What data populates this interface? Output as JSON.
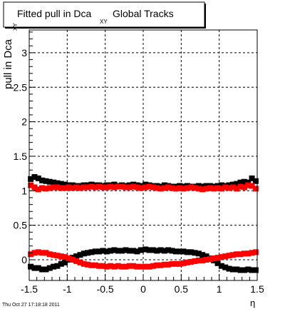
{
  "chart_data": {
    "type": "scatter",
    "title": {
      "before_sub": "Fitted pull in Dca",
      "subscript": "XY",
      "after_sub": "Global Tracks"
    },
    "ylabel": {
      "main": "pull in Dca",
      "subscript": "XY"
    },
    "xlabel": "η",
    "xlim": [
      -1.5,
      1.5
    ],
    "ylim": [
      -0.3,
      3.33
    ],
    "x_ticks": [
      "-1.5",
      "-1",
      "-0.5",
      "0",
      "0.5",
      "1",
      "1.5"
    ],
    "y_ticks": [
      "0",
      "0.5",
      "1",
      "1.5",
      "2",
      "2.5",
      "3"
    ],
    "grid": true,
    "marker": "square",
    "series": [
      {
        "color": "#000000",
        "x": [
          -1.48,
          -1.43,
          -1.38,
          -1.33,
          -1.28,
          -1.23,
          -1.18,
          -1.13,
          -1.08,
          -1.03,
          -0.98,
          -0.93,
          -0.88,
          -0.83,
          -0.78,
          -0.73,
          -0.68,
          -0.63,
          -0.58,
          -0.53,
          -0.48,
          -0.43,
          -0.38,
          -0.33,
          -0.28,
          -0.23,
          -0.18,
          -0.13,
          -0.08,
          -0.03,
          0.03,
          0.08,
          0.13,
          0.18,
          0.23,
          0.28,
          0.33,
          0.38,
          0.43,
          0.48,
          0.53,
          0.58,
          0.63,
          0.68,
          0.73,
          0.78,
          0.83,
          0.88,
          0.93,
          0.98,
          1.03,
          1.08,
          1.13,
          1.18,
          1.23,
          1.28,
          1.33,
          1.38,
          1.43,
          1.48
        ],
        "y": [
          1.17,
          1.2,
          1.18,
          1.15,
          1.14,
          1.13,
          1.12,
          1.11,
          1.1,
          1.09,
          1.08,
          1.08,
          1.07,
          1.07,
          1.08,
          1.08,
          1.09,
          1.08,
          1.08,
          1.07,
          1.08,
          1.08,
          1.09,
          1.07,
          1.08,
          1.07,
          1.08,
          1.09,
          1.08,
          1.07,
          1.09,
          1.08,
          1.07,
          1.07,
          1.06,
          1.08,
          1.07,
          1.06,
          1.06,
          1.07,
          1.06,
          1.07,
          1.06,
          1.06,
          1.07,
          1.06,
          1.07,
          1.07,
          1.06,
          1.07,
          1.08,
          1.07,
          1.08,
          1.09,
          1.1,
          1.12,
          1.13,
          1.12,
          1.18,
          1.14
        ]
      },
      {
        "color": "#ff0000",
        "x": [
          -1.48,
          -1.43,
          -1.38,
          -1.33,
          -1.28,
          -1.23,
          -1.18,
          -1.13,
          -1.08,
          -1.03,
          -0.98,
          -0.93,
          -0.88,
          -0.83,
          -0.78,
          -0.73,
          -0.68,
          -0.63,
          -0.58,
          -0.53,
          -0.48,
          -0.43,
          -0.38,
          -0.33,
          -0.28,
          -0.23,
          -0.18,
          -0.13,
          -0.08,
          -0.03,
          0.03,
          0.08,
          0.13,
          0.18,
          0.23,
          0.28,
          0.33,
          0.38,
          0.43,
          0.48,
          0.53,
          0.58,
          0.63,
          0.68,
          0.73,
          0.78,
          0.83,
          0.88,
          0.93,
          0.98,
          1.03,
          1.08,
          1.13,
          1.18,
          1.23,
          1.28,
          1.33,
          1.38,
          1.43,
          1.48
        ],
        "y": [
          1.08,
          1.05,
          1.02,
          1.04,
          1.03,
          1.04,
          1.05,
          1.05,
          1.04,
          1.04,
          1.05,
          1.04,
          1.05,
          1.04,
          1.05,
          1.05,
          1.06,
          1.05,
          1.06,
          1.05,
          1.05,
          1.06,
          1.05,
          1.06,
          1.06,
          1.05,
          1.05,
          1.06,
          1.05,
          1.04,
          1.05,
          1.06,
          1.05,
          1.04,
          1.03,
          1.04,
          1.05,
          1.04,
          1.03,
          1.04,
          1.03,
          1.04,
          1.05,
          1.04,
          1.03,
          1.02,
          1.03,
          1.04,
          1.03,
          1.04,
          1.03,
          1.05,
          1.04,
          1.05,
          1.03,
          1.06,
          1.05,
          1.08,
          1.07,
          1.03
        ]
      },
      {
        "color": "#000000",
        "x": [
          -1.48,
          -1.43,
          -1.38,
          -1.33,
          -1.28,
          -1.23,
          -1.18,
          -1.13,
          -1.08,
          -1.03,
          -0.98,
          -0.93,
          -0.88,
          -0.83,
          -0.78,
          -0.73,
          -0.68,
          -0.63,
          -0.58,
          -0.53,
          -0.48,
          -0.43,
          -0.38,
          -0.33,
          -0.28,
          -0.23,
          -0.18,
          -0.13,
          -0.08,
          -0.03,
          0.03,
          0.08,
          0.13,
          0.18,
          0.23,
          0.28,
          0.33,
          0.38,
          0.43,
          0.48,
          0.53,
          0.58,
          0.63,
          0.68,
          0.73,
          0.78,
          0.83,
          0.88,
          0.93,
          0.98,
          1.03,
          1.08,
          1.13,
          1.18,
          1.23,
          1.28,
          1.33,
          1.38,
          1.43,
          1.48
        ],
        "y": [
          -0.1,
          -0.12,
          -0.12,
          -0.14,
          -0.14,
          -0.12,
          -0.1,
          -0.09,
          -0.06,
          -0.04,
          0.0,
          0.03,
          0.05,
          0.07,
          0.09,
          0.1,
          0.11,
          0.12,
          0.12,
          0.13,
          0.12,
          0.13,
          0.14,
          0.13,
          0.13,
          0.14,
          0.13,
          0.13,
          0.12,
          0.14,
          0.15,
          0.14,
          0.14,
          0.13,
          0.14,
          0.13,
          0.14,
          0.13,
          0.12,
          0.12,
          0.12,
          0.11,
          0.11,
          0.1,
          0.09,
          0.07,
          0.05,
          0.02,
          -0.01,
          -0.05,
          -0.09,
          -0.11,
          -0.13,
          -0.14,
          -0.14,
          -0.15,
          -0.15,
          -0.14,
          -0.15,
          -0.15
        ]
      },
      {
        "color": "#ff0000",
        "x": [
          -1.48,
          -1.43,
          -1.38,
          -1.33,
          -1.28,
          -1.23,
          -1.18,
          -1.13,
          -1.08,
          -1.03,
          -0.98,
          -0.93,
          -0.88,
          -0.83,
          -0.78,
          -0.73,
          -0.68,
          -0.63,
          -0.58,
          -0.53,
          -0.48,
          -0.43,
          -0.38,
          -0.33,
          -0.28,
          -0.23,
          -0.18,
          -0.13,
          -0.08,
          -0.03,
          0.03,
          0.08,
          0.13,
          0.18,
          0.23,
          0.28,
          0.33,
          0.38,
          0.43,
          0.48,
          0.53,
          0.58,
          0.63,
          0.68,
          0.73,
          0.78,
          0.83,
          0.88,
          0.93,
          0.98,
          1.03,
          1.08,
          1.13,
          1.18,
          1.23,
          1.28,
          1.33,
          1.38,
          1.43,
          1.48
        ],
        "y": [
          0.08,
          0.1,
          0.11,
          0.1,
          0.1,
          0.08,
          0.07,
          0.06,
          0.05,
          0.04,
          0.02,
          0.0,
          -0.02,
          -0.04,
          -0.06,
          -0.07,
          -0.08,
          -0.08,
          -0.09,
          -0.09,
          -0.1,
          -0.09,
          -0.1,
          -0.09,
          -0.1,
          -0.1,
          -0.09,
          -0.09,
          -0.1,
          -0.1,
          -0.1,
          -0.1,
          -0.09,
          -0.08,
          -0.08,
          -0.07,
          -0.07,
          -0.06,
          -0.06,
          -0.06,
          -0.05,
          -0.04,
          -0.03,
          -0.02,
          -0.01,
          -0.01,
          0.0,
          0.01,
          0.02,
          0.03,
          0.04,
          0.05,
          0.06,
          0.07,
          0.08,
          0.08,
          0.09,
          0.09,
          0.1,
          0.11
        ]
      }
    ]
  },
  "footer": {
    "timestamp": "Thu Oct 27 17:18:18 2011"
  }
}
